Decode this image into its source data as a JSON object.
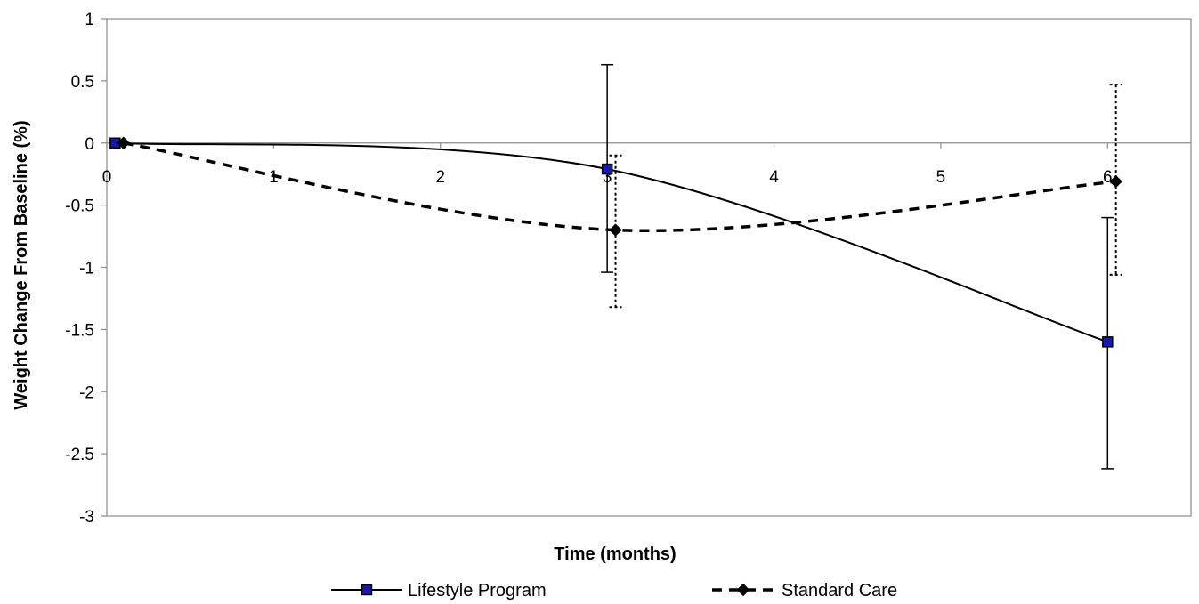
{
  "chart_data": {
    "type": "line",
    "title": "",
    "xlabel": "Time (months)",
    "ylabel": "Weight Change From Baseline (%)",
    "xlim": [
      0,
      6.5
    ],
    "ylim": [
      -3,
      1
    ],
    "x_ticks": [
      "0",
      "1",
      "2",
      "3",
      "4",
      "5",
      "6"
    ],
    "y_ticks": [
      "1",
      "0.5",
      "0",
      "-0.5",
      "-1",
      "-1.5",
      "-2",
      "-2.5",
      "-3"
    ],
    "grid": false,
    "legend_position": "bottom",
    "series": [
      {
        "name": "Lifestyle Program",
        "marker": "square",
        "line_style": "solid",
        "color": "#000000",
        "marker_color": "#1a1aa6",
        "x": [
          0.05,
          3.0,
          6.0
        ],
        "y": [
          0.0,
          -0.21,
          -1.6
        ],
        "error_low": [
          null,
          -1.04,
          -2.62
        ],
        "error_high": [
          null,
          0.63,
          -0.6
        ]
      },
      {
        "name": "Standard Care",
        "marker": "diamond",
        "line_style": "dashed",
        "color": "#000000",
        "marker_color": "#000000",
        "x": [
          0.1,
          3.05,
          6.05
        ],
        "y": [
          0.0,
          -0.7,
          -0.31
        ],
        "error_low": [
          null,
          -1.32,
          -1.06
        ],
        "error_high": [
          null,
          -0.1,
          0.47
        ]
      }
    ]
  }
}
